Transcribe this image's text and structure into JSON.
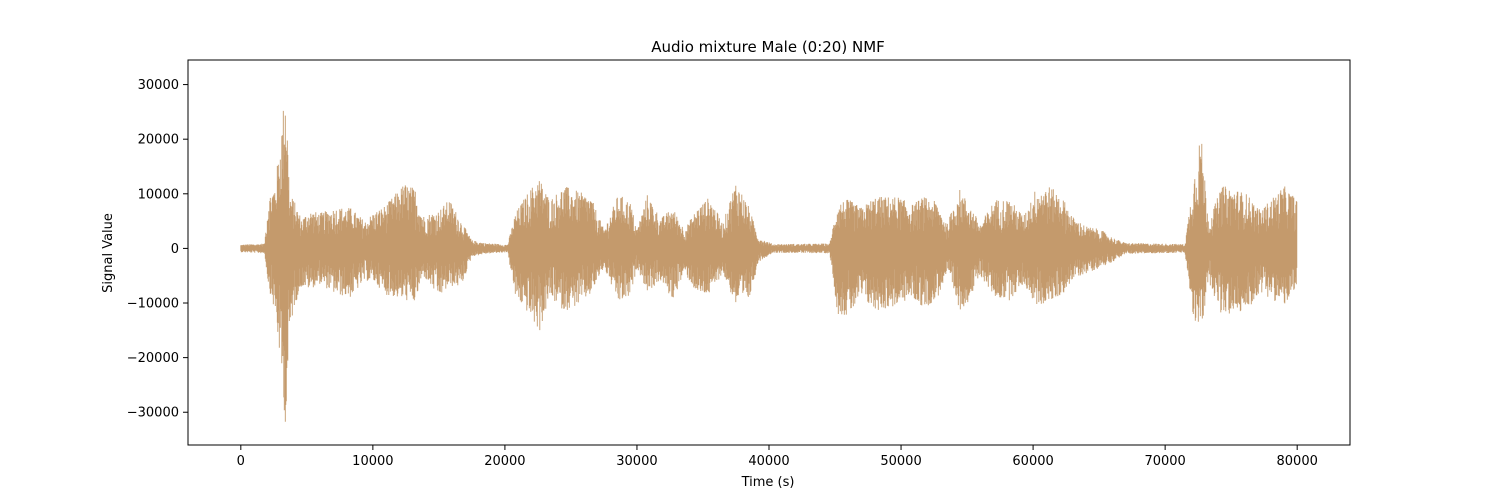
{
  "chart_data": {
    "type": "line",
    "title": "Audio mixture Male (0:20) NMF",
    "xlabel": "Time (s)",
    "ylabel": "Signal Value",
    "xlim": [
      -4000,
      84000
    ],
    "ylim": [
      -36000,
      34500
    ],
    "xticks": [
      0,
      10000,
      20000,
      30000,
      40000,
      50000,
      60000,
      70000,
      80000
    ],
    "yticks": [
      -30000,
      -20000,
      -10000,
      0,
      10000,
      20000,
      30000
    ],
    "grid": false,
    "series": [
      {
        "color": "#c49a6c",
        "x_range": [
          0,
          80000
        ],
        "envelope": {
          "x": [
            0,
            1800,
            2100,
            2600,
            3000,
            3400,
            3700,
            4000,
            4600,
            5200,
            6000,
            7200,
            8300,
            9400,
            10000,
            11000,
            12400,
            13200,
            13800,
            15000,
            15800,
            16700,
            17500,
            18500,
            20200,
            20800,
            21800,
            22600,
            23400,
            24500,
            25500,
            26500,
            27500,
            28600,
            29500,
            30000,
            30800,
            31800,
            32700,
            33600,
            34600,
            35500,
            36500,
            37500,
            38500,
            39200,
            40300,
            44600,
            45200,
            46000,
            47000,
            48000,
            49000,
            49800,
            50800,
            51700,
            52700,
            53500,
            54400,
            55200,
            56000,
            57100,
            58200,
            59300,
            60200,
            61200,
            62200,
            63100,
            64100,
            65100,
            66000,
            67000,
            71500,
            72100,
            72700,
            73300,
            74300,
            75200,
            76200,
            77200,
            78200,
            79000,
            80000
          ],
          "upper": [
            700,
            900,
            9500,
            12000,
            20000,
            31000,
            10000,
            9000,
            5500,
            7000,
            6500,
            7500,
            7500,
            5000,
            6500,
            8000,
            12000,
            11000,
            6000,
            7000,
            9000,
            5000,
            1500,
            1000,
            700,
            6500,
            10500,
            13000,
            9000,
            11500,
            10500,
            9500,
            3500,
            10000,
            8500,
            3500,
            10000,
            5500,
            7500,
            3500,
            7500,
            9500,
            4500,
            12500,
            7500,
            2000,
            800,
            900,
            8500,
            9000,
            7500,
            9500,
            9500,
            9500,
            8000,
            9500,
            8500,
            4500,
            11000,
            8000,
            4500,
            9000,
            9000,
            6000,
            11000,
            11500,
            9500,
            5500,
            4000,
            3500,
            2000,
            1000,
            800,
            12000,
            21500,
            5000,
            11500,
            11000,
            10000,
            7000,
            9500,
            11500,
            9000
          ],
          "lower": [
            -700,
            -900,
            -7000,
            -12000,
            -21000,
            -33000,
            -16000,
            -11000,
            -7000,
            -7500,
            -6500,
            -8500,
            -9000,
            -6000,
            -6000,
            -8500,
            -9500,
            -10000,
            -5000,
            -9000,
            -7000,
            -7000,
            -1500,
            -1000,
            -700,
            -9000,
            -12000,
            -15500,
            -9000,
            -11500,
            -10500,
            -8500,
            -3500,
            -10000,
            -9000,
            -3500,
            -8000,
            -6000,
            -9500,
            -4500,
            -8500,
            -8500,
            -4500,
            -10500,
            -9500,
            -2500,
            -800,
            -900,
            -12000,
            -12500,
            -9000,
            -11500,
            -11000,
            -10500,
            -9000,
            -11000,
            -9500,
            -4500,
            -11500,
            -9500,
            -5000,
            -9000,
            -9500,
            -6500,
            -10500,
            -10000,
            -8500,
            -5500,
            -4500,
            -3500,
            -2500,
            -1000,
            -800,
            -12500,
            -16000,
            -6000,
            -12500,
            -12000,
            -11500,
            -8000,
            -9500,
            -10500,
            -8000
          ]
        }
      }
    ]
  }
}
